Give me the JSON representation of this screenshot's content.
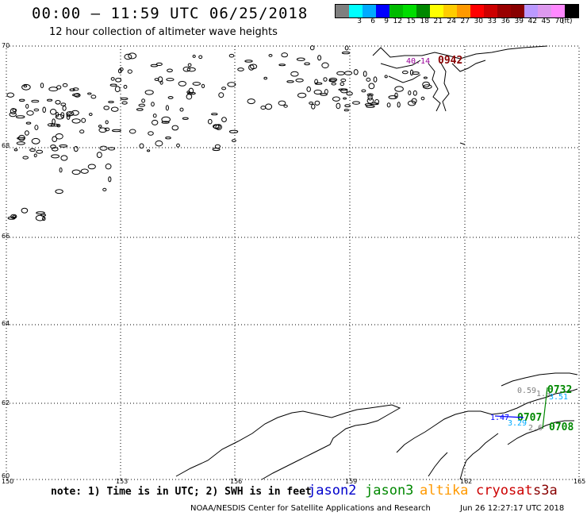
{
  "header": {
    "title": "00:00 – 11:59 UTC 06/25/2018",
    "subtitle": "12 hour collection of altimeter wave heights"
  },
  "colorbar": {
    "colors": [
      "#7f7f7f",
      "#00ffff",
      "#00aaff",
      "#0000ff",
      "#00bb00",
      "#00dd00",
      "#008800",
      "#ffff00",
      "#ffcc00",
      "#ff9900",
      "#ff0000",
      "#cc0000",
      "#990000",
      "#880000",
      "#bb99ff",
      "#dd99ee",
      "#ff88ff",
      "#000000"
    ],
    "labels": [
      "",
      "3",
      "6",
      "9",
      "12",
      "15",
      "18",
      "21",
      "24",
      "27",
      "30",
      "33",
      "36",
      "39",
      "42",
      "45",
      "70",
      ""
    ],
    "unit": "(ft)"
  },
  "axes": {
    "lat_labels": [
      "70",
      "68",
      "66",
      "64",
      "62",
      "60"
    ],
    "lon_labels": [
      "150",
      "153",
      "156",
      "159",
      "162",
      "165"
    ]
  },
  "annotations": {
    "north_value": "40.14",
    "north_time": "0942",
    "se_values": [
      "0.59",
      "1.9",
      "3.51",
      "1.47",
      "3.29",
      "2.6"
    ],
    "se_times": [
      "0732",
      "0707",
      "0708"
    ]
  },
  "footer": {
    "note": "note: 1) Time is in UTC; 2) SWH is in feet",
    "satellites": [
      {
        "name": "jason2",
        "color": "#0000cc"
      },
      {
        "name": "jason3",
        "color": "#008800"
      },
      {
        "name": "altika",
        "color": "#ff9900"
      },
      {
        "name": "cryosat",
        "color": "#cc0000"
      },
      {
        "name": "s3a",
        "color": "#880000"
      }
    ],
    "credit": "NOAA/NESDIS Center for Satellite Applications and Research",
    "timestamp": "Jun 26 12:27:17 UTC 2018"
  }
}
